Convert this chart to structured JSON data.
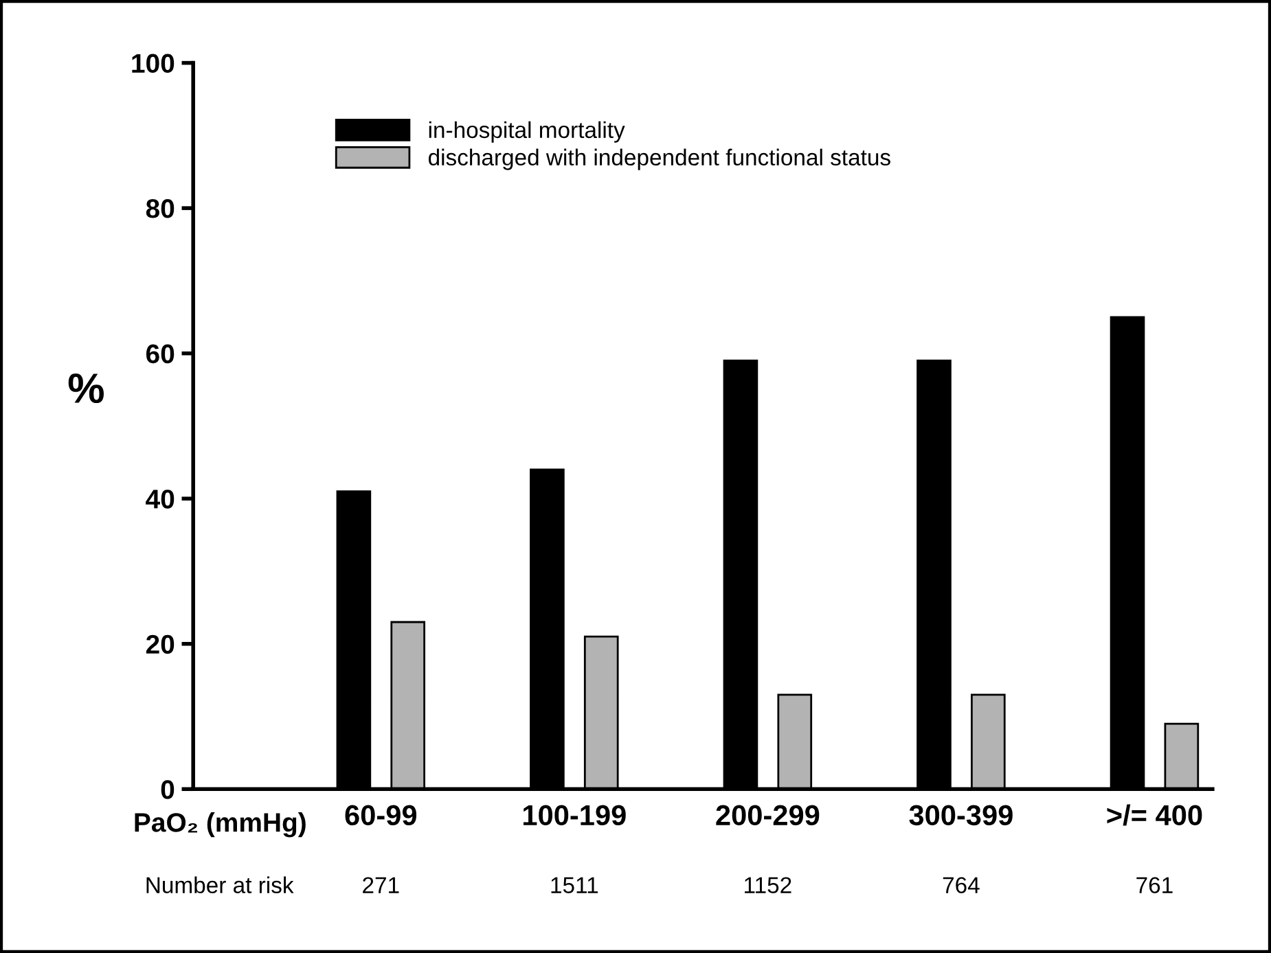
{
  "chart_data": {
    "type": "bar",
    "xlabel": "PaO₂ (mmHg)",
    "ylabel": "%",
    "categories": [
      "60-99",
      "100-199",
      "200-299",
      "300-399",
      ">/= 400"
    ],
    "series": [
      {
        "name": "in-hospital mortality",
        "color": "#000000",
        "values": [
          41,
          44,
          59,
          59,
          65
        ]
      },
      {
        "name": "discharged with independent functional status",
        "color": "#b3b3b3",
        "values": [
          23,
          21,
          13,
          13,
          9
        ]
      }
    ],
    "ylim": [
      0,
      100
    ],
    "yticks": [
      0,
      20,
      40,
      60,
      80,
      100
    ],
    "grid": false,
    "legend": "top left",
    "annotations": [
      "Number at risk",
      "271",
      "1511",
      "1152",
      "764",
      "761"
    ]
  }
}
